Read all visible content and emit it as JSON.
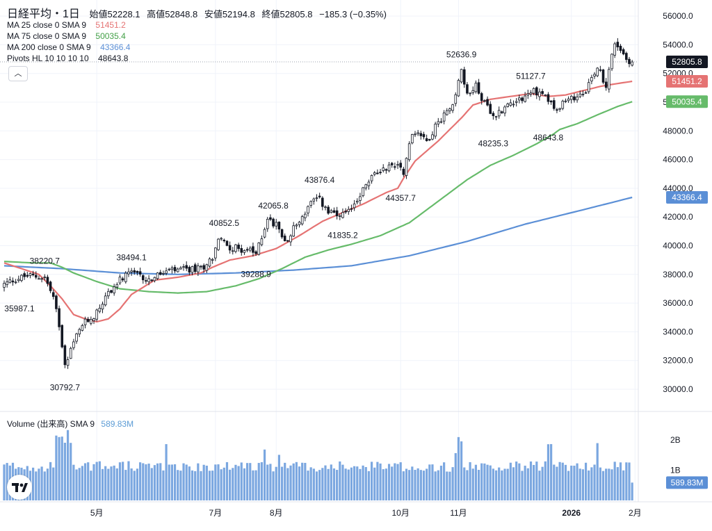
{
  "header": {
    "symbol": "日経平均・1日",
    "open_label": "始値",
    "open": "52228.1",
    "high_label": "高値",
    "high": "52848.8",
    "low_label": "安値",
    "low": "52194.8",
    "close_label": "終値",
    "close": "52805.8",
    "change": "−185.3 (−0.35%)"
  },
  "indicators": [
    {
      "label": "MA 25 close 0 SMA 9",
      "value": "51451.2",
      "color": "#e57373"
    },
    {
      "label": "MA 75 close 0 SMA 9",
      "value": "50035.4",
      "color": "#66bb6a"
    },
    {
      "label": "MA 200 close 0 SMA 9",
      "value": "43366.4",
      "color": "#5b8fd6"
    },
    {
      "label": "Pivots HL 10 10 10 10",
      "value": "48643.8",
      "color": "#131722"
    }
  ],
  "volume_legend": {
    "label": "Volume (出来高) SMA 9",
    "value": "589.83M"
  },
  "colors": {
    "up": "#ffffff",
    "down": "#131722",
    "volume": "#7ba7e0",
    "ma25": "#e57373",
    "ma75": "#66bb6a",
    "ma200": "#5b8fd6"
  },
  "chart_data": {
    "type": "candlestick",
    "price_axis": {
      "min": 30000,
      "max": 56000,
      "ticks": [
        "30000.0",
        "32000.0",
        "34000.0",
        "36000.0",
        "38000.0",
        "40000.0",
        "42000.0",
        "44000.0",
        "46000.0",
        "48000.0",
        "50000.0",
        "52000.0",
        "54000.0",
        "56000.0"
      ]
    },
    "volume_axis": {
      "ticks": [
        "1B",
        "2B"
      ]
    },
    "x_ticks": [
      {
        "label": "5月",
        "i": 32
      },
      {
        "label": "7月",
        "i": 73
      },
      {
        "label": "8月",
        "i": 94
      },
      {
        "label": "10月",
        "i": 137
      },
      {
        "label": "11月",
        "i": 157
      },
      {
        "label": "2026",
        "i": 196
      },
      {
        "label": "2月",
        "i": 218
      }
    ],
    "price_tags": [
      {
        "value": "52805.8",
        "price": 52805.8,
        "bg": "#131722",
        "fg": "#ffffff",
        "outline": true
      },
      {
        "value": "51451.2",
        "price": 51451.2,
        "bg": "#e57373",
        "fg": "#ffffff"
      },
      {
        "value": "50035.4",
        "price": 50035.4,
        "bg": "#66bb6a",
        "fg": "#ffffff"
      },
      {
        "value": "43366.4",
        "price": 43366.4,
        "bg": "#5b8fd6",
        "fg": "#ffffff"
      }
    ],
    "volume_tag": {
      "value": "589.83M",
      "bg": "#5b8fd6"
    },
    "pivots": [
      {
        "label": "35987.1",
        "i": 0,
        "p": 36300,
        "pos": "below"
      },
      {
        "label": "38220.7",
        "i": 14,
        "p": 38250,
        "pos": "above"
      },
      {
        "label": "30792.7",
        "i": 21,
        "p": 30800,
        "pos": "below"
      },
      {
        "label": "38494.1",
        "i": 44,
        "p": 38500,
        "pos": "above"
      },
      {
        "label": "40852.5",
        "i": 76,
        "p": 40900,
        "pos": "above"
      },
      {
        "label": "39288.9",
        "i": 87,
        "p": 38700,
        "pos": "below"
      },
      {
        "label": "42065.8",
        "i": 93,
        "p": 42100,
        "pos": "above"
      },
      {
        "label": "41835.2",
        "i": 117,
        "p": 41400,
        "pos": "below"
      },
      {
        "label": "43876.4",
        "i": 109,
        "p": 43900,
        "pos": "above"
      },
      {
        "label": "44357.7",
        "i": 137,
        "p": 44000,
        "pos": "below"
      },
      {
        "label": "52636.9",
        "i": 158,
        "p": 52650,
        "pos": "above"
      },
      {
        "label": "48235.3",
        "i": 169,
        "p": 47800,
        "pos": "below"
      },
      {
        "label": "51127.7",
        "i": 182,
        "p": 51150,
        "pos": "above"
      },
      {
        "label": "48643.8",
        "i": 188,
        "p": 48200,
        "pos": "below"
      }
    ],
    "anchors": [
      [
        0,
        37300
      ],
      [
        3,
        37600
      ],
      [
        8,
        37900
      ],
      [
        14,
        37800
      ],
      [
        17,
        36400
      ],
      [
        19,
        34500
      ],
      [
        21,
        31800
      ],
      [
        23,
        32800
      ],
      [
        27,
        34500
      ],
      [
        31,
        35100
      ],
      [
        36,
        36700
      ],
      [
        40,
        37600
      ],
      [
        44,
        38100
      ],
      [
        50,
        37600
      ],
      [
        56,
        38200
      ],
      [
        62,
        38300
      ],
      [
        68,
        38400
      ],
      [
        72,
        39200
      ],
      [
        74,
        40500
      ],
      [
        78,
        39900
      ],
      [
        84,
        39700
      ],
      [
        87,
        39400
      ],
      [
        91,
        41900
      ],
      [
        94,
        41400
      ],
      [
        97,
        40300
      ],
      [
        100,
        41200
      ],
      [
        103,
        42000
      ],
      [
        106,
        43000
      ],
      [
        109,
        43200
      ],
      [
        112,
        42300
      ],
      [
        116,
        42000
      ],
      [
        119,
        42300
      ],
      [
        123,
        43600
      ],
      [
        127,
        44800
      ],
      [
        131,
        45400
      ],
      [
        136,
        45700
      ],
      [
        138,
        45200
      ],
      [
        141,
        47800
      ],
      [
        143,
        48000
      ],
      [
        146,
        47300
      ],
      [
        150,
        48600
      ],
      [
        153,
        49400
      ],
      [
        156,
        50400
      ],
      [
        158,
        52400
      ],
      [
        160,
        50400
      ],
      [
        163,
        51200
      ],
      [
        166,
        49900
      ],
      [
        169,
        48900
      ],
      [
        172,
        49500
      ],
      [
        176,
        50100
      ],
      [
        180,
        50400
      ],
      [
        183,
        50800
      ],
      [
        187,
        50500
      ],
      [
        190,
        49600
      ],
      [
        193,
        49900
      ],
      [
        197,
        50300
      ],
      [
        201,
        50900
      ],
      [
        203,
        51700
      ],
      [
        205,
        52500
      ],
      [
        208,
        51200
      ],
      [
        211,
        54200
      ],
      [
        213,
        53700
      ],
      [
        215,
        53000
      ],
      [
        217,
        52806
      ]
    ],
    "ma25": [
      [
        0,
        38800
      ],
      [
        12,
        38000
      ],
      [
        16,
        37200
      ],
      [
        20,
        36300
      ],
      [
        24,
        35200
      ],
      [
        28,
        34900
      ],
      [
        32,
        34700
      ],
      [
        36,
        34900
      ],
      [
        40,
        35600
      ],
      [
        44,
        36600
      ],
      [
        52,
        37600
      ],
      [
        60,
        37800
      ],
      [
        68,
        38100
      ],
      [
        72,
        38500
      ],
      [
        78,
        39000
      ],
      [
        86,
        39300
      ],
      [
        94,
        39800
      ],
      [
        102,
        40700
      ],
      [
        110,
        41700
      ],
      [
        118,
        42400
      ],
      [
        124,
        42900
      ],
      [
        132,
        43700
      ],
      [
        136,
        44000
      ],
      [
        138,
        44700
      ],
      [
        142,
        45900
      ],
      [
        150,
        47300
      ],
      [
        158,
        48900
      ],
      [
        162,
        49800
      ],
      [
        168,
        50200
      ],
      [
        175,
        50400
      ],
      [
        182,
        50600
      ],
      [
        188,
        50400
      ],
      [
        194,
        50500
      ],
      [
        200,
        50800
      ],
      [
        206,
        51100
      ],
      [
        212,
        51300
      ],
      [
        217,
        51451
      ]
    ],
    "ma75": [
      [
        0,
        38900
      ],
      [
        10,
        38800
      ],
      [
        16,
        38800
      ],
      [
        20,
        38500
      ],
      [
        24,
        38100
      ],
      [
        32,
        37500
      ],
      [
        40,
        37000
      ],
      [
        50,
        36800
      ],
      [
        60,
        36700
      ],
      [
        70,
        36800
      ],
      [
        80,
        37200
      ],
      [
        88,
        37700
      ],
      [
        96,
        38400
      ],
      [
        104,
        39200
      ],
      [
        112,
        39700
      ],
      [
        120,
        40100
      ],
      [
        130,
        40700
      ],
      [
        140,
        41600
      ],
      [
        148,
        42800
      ],
      [
        154,
        43700
      ],
      [
        160,
        44600
      ],
      [
        168,
        45600
      ],
      [
        176,
        46300
      ],
      [
        184,
        47100
      ],
      [
        190,
        47800
      ],
      [
        192,
        48100
      ],
      [
        198,
        48500
      ],
      [
        206,
        49200
      ],
      [
        212,
        49700
      ],
      [
        217,
        50035
      ]
    ],
    "ma200": [
      [
        0,
        38600
      ],
      [
        20,
        38400
      ],
      [
        40,
        38100
      ],
      [
        60,
        38000
      ],
      [
        80,
        38100
      ],
      [
        100,
        38300
      ],
      [
        120,
        38600
      ],
      [
        140,
        39300
      ],
      [
        160,
        40300
      ],
      [
        180,
        41500
      ],
      [
        200,
        42500
      ],
      [
        217,
        43366
      ]
    ]
  }
}
